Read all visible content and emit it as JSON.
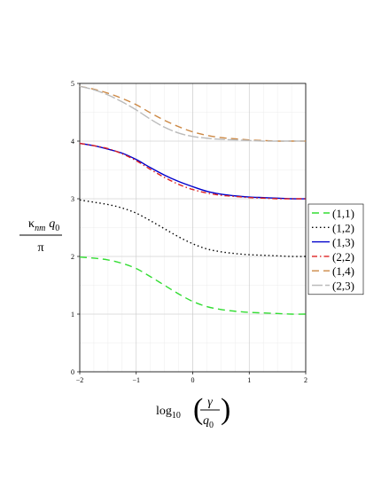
{
  "chart_data": {
    "type": "line",
    "title": "",
    "xlabel": {
      "prefix": "log",
      "subscript": "10",
      "fraction_numerator": "γ",
      "fraction_denominator": "q",
      "fraction_denominator_sub": "0"
    },
    "ylabel": {
      "numerator_symbol": "κ",
      "numerator_sub": "nm",
      "numerator_q": "q",
      "numerator_q_sub": "0",
      "denominator": "π"
    },
    "xlim": [
      -2,
      2
    ],
    "ylim": [
      0,
      5
    ],
    "xticks": [
      "−2",
      "−1",
      "0",
      "1",
      "2"
    ],
    "yticks": [
      "0",
      "1",
      "2",
      "3",
      "4",
      "5"
    ],
    "grid": true,
    "legend_position": "right",
    "x": [
      -2.0,
      -1.75,
      -1.5,
      -1.25,
      -1.0,
      -0.75,
      -0.5,
      -0.25,
      0.0,
      0.25,
      0.5,
      0.75,
      1.0,
      1.25,
      1.5,
      1.75,
      2.0
    ],
    "series": [
      {
        "name": "(1,1)",
        "color": "#33dd33",
        "dash": "8,5",
        "values": [
          1.99,
          1.97,
          1.94,
          1.88,
          1.79,
          1.65,
          1.5,
          1.35,
          1.22,
          1.13,
          1.08,
          1.05,
          1.03,
          1.02,
          1.01,
          1.0,
          1.0
        ]
      },
      {
        "name": "(1,2)",
        "color": "#000000",
        "dash": "1.5,3",
        "values": [
          2.98,
          2.94,
          2.9,
          2.84,
          2.75,
          2.62,
          2.48,
          2.34,
          2.22,
          2.13,
          2.08,
          2.05,
          2.03,
          2.02,
          2.01,
          2.0,
          2.0
        ]
      },
      {
        "name": "(1,3)",
        "color": "#0000cc",
        "dash": "",
        "values": [
          3.96,
          3.92,
          3.86,
          3.79,
          3.68,
          3.54,
          3.41,
          3.3,
          3.21,
          3.13,
          3.08,
          3.05,
          3.03,
          3.02,
          3.01,
          3.0,
          3.0
        ]
      },
      {
        "name": "(2,2)",
        "color": "#dd2222",
        "dash": "6,3,1.5,3",
        "values": [
          3.96,
          3.92,
          3.87,
          3.78,
          3.66,
          3.51,
          3.37,
          3.25,
          3.16,
          3.1,
          3.06,
          3.04,
          3.02,
          3.01,
          3.0,
          3.0,
          3.0
        ]
      },
      {
        "name": "(1,4)",
        "color": "#cc8844",
        "dash": "8,5",
        "values": [
          4.95,
          4.9,
          4.83,
          4.74,
          4.63,
          4.49,
          4.36,
          4.25,
          4.16,
          4.1,
          4.06,
          4.04,
          4.02,
          4.01,
          4.0,
          4.0,
          4.0
        ]
      },
      {
        "name": "(2,3)",
        "color": "#bbbbbb",
        "dash": "12,3",
        "values": [
          4.95,
          4.89,
          4.8,
          4.68,
          4.54,
          4.38,
          4.24,
          4.14,
          4.08,
          4.05,
          4.03,
          4.02,
          4.01,
          4.0,
          4.0,
          4.0,
          4.0
        ]
      }
    ]
  }
}
